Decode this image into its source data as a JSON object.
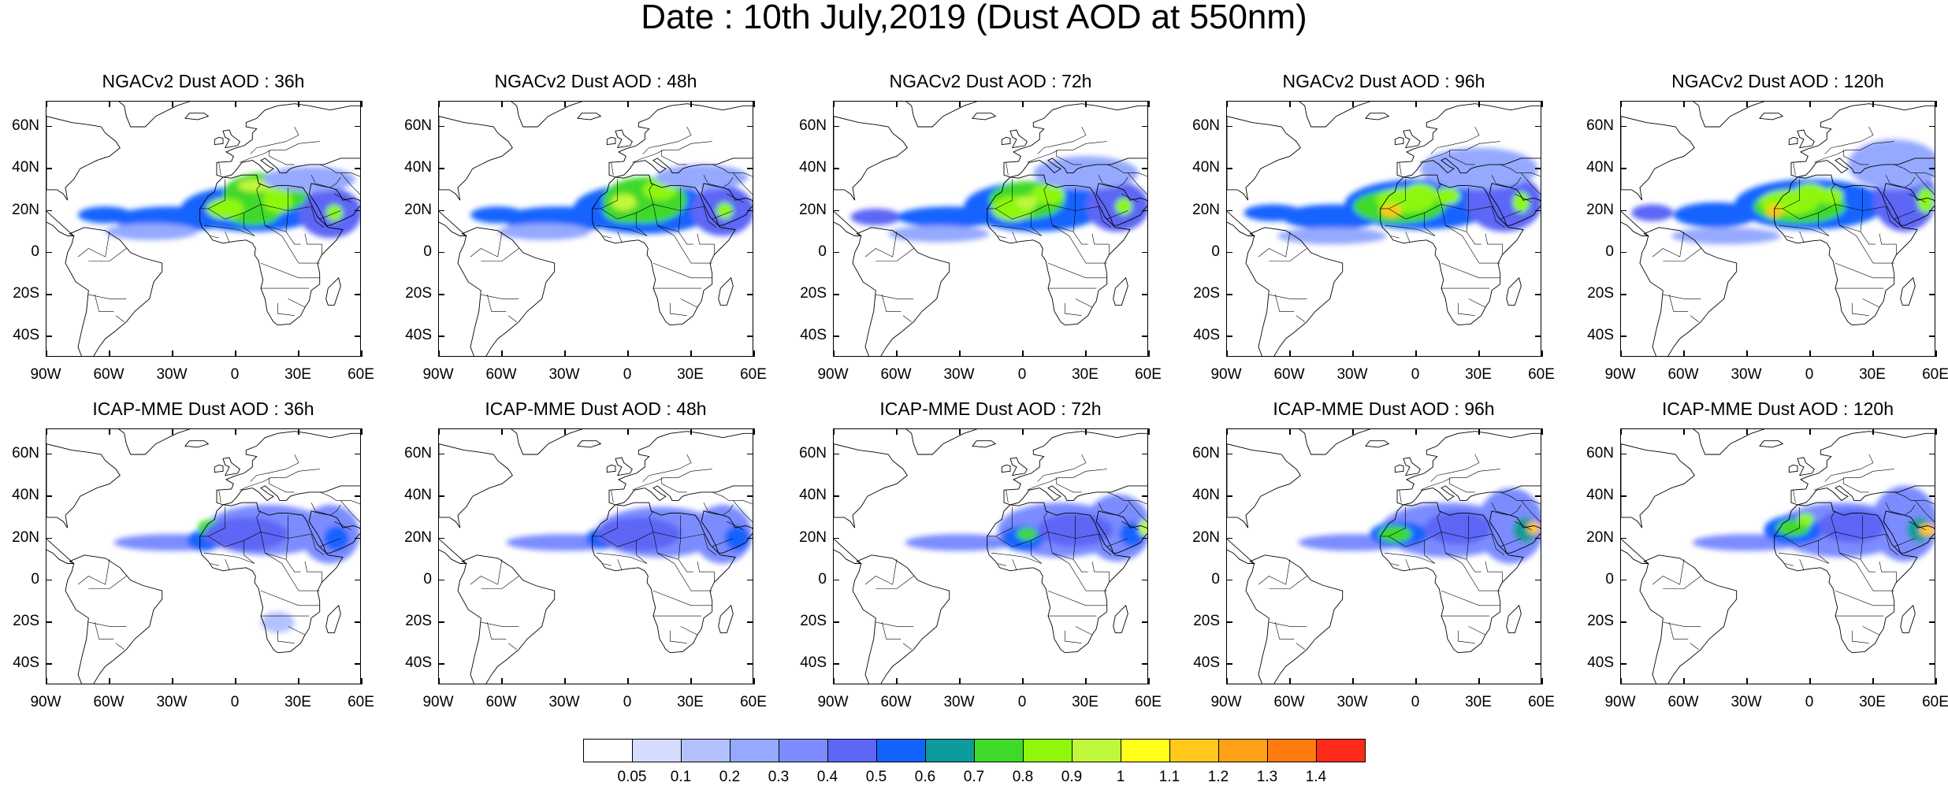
{
  "title": "Date : 10th July,2019 (Dust AOD at 550nm)",
  "axes": {
    "lat_ticks": [
      "60N",
      "40N",
      "20N",
      "0",
      "20S",
      "40S"
    ],
    "lat_values": [
      60,
      40,
      20,
      0,
      -20,
      -40
    ],
    "lat_range": [
      -50,
      72
    ],
    "lon_ticks": [
      "90W",
      "60W",
      "30W",
      "0",
      "30E",
      "60E"
    ],
    "lon_values": [
      -90,
      -60,
      -30,
      0,
      30,
      60
    ],
    "lon_range": [
      -90,
      60
    ]
  },
  "panels": [
    {
      "title": "NGACv2 Dust AOD : 36h"
    },
    {
      "title": "NGACv2 Dust AOD : 48h"
    },
    {
      "title": "NGACv2 Dust AOD : 72h"
    },
    {
      "title": "NGACv2 Dust AOD : 96h"
    },
    {
      "title": "NGACv2 Dust AOD : 120h"
    },
    {
      "title": "ICAP-MME Dust AOD : 36h"
    },
    {
      "title": "ICAP-MME Dust AOD : 48h"
    },
    {
      "title": "ICAP-MME Dust AOD : 72h"
    },
    {
      "title": "ICAP-MME Dust AOD : 96h"
    },
    {
      "title": "ICAP-MME Dust AOD : 120h"
    }
  ],
  "colorbar": {
    "labels": [
      "0.05",
      "0.1",
      "0.2",
      "0.3",
      "0.4",
      "0.5",
      "0.6",
      "0.7",
      "0.8",
      "0.9",
      "1",
      "1.1",
      "1.2",
      "1.3",
      "1.4"
    ],
    "colors": [
      "#ffffff",
      "#d5dcff",
      "#b4c1ff",
      "#95a9ff",
      "#7c8cff",
      "#5d66f5",
      "#1563ff",
      "#0e9b9b",
      "#3fd929",
      "#8ef70a",
      "#bff73b",
      "#ffff1a",
      "#ffc81a",
      "#ffa015",
      "#ff7a0f",
      "#ff2a1a"
    ]
  }
}
